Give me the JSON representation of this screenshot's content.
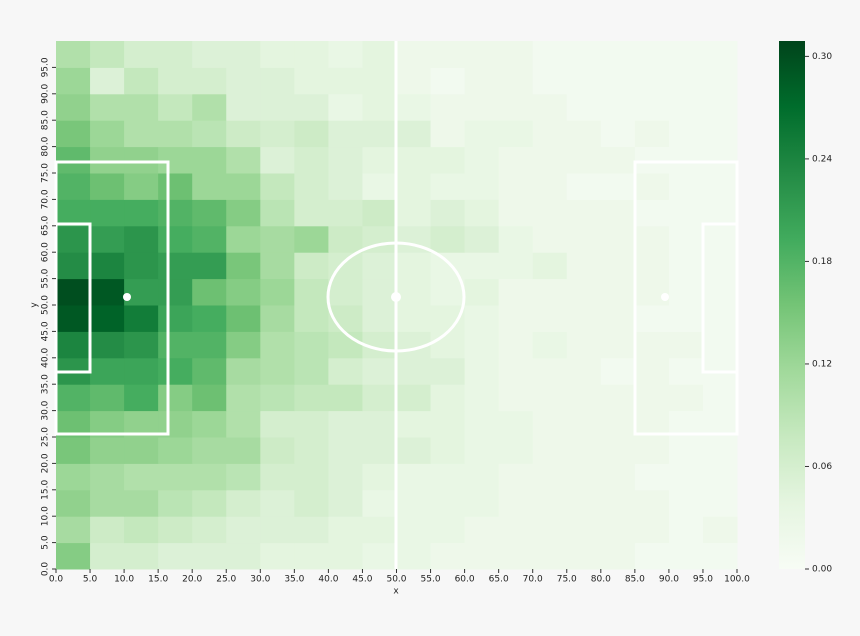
{
  "chart_data": {
    "type": "heatmap",
    "xlabel": "x",
    "ylabel": "y",
    "colormap": "Greens",
    "xlim": [
      0,
      100
    ],
    "ylim": [
      0,
      100
    ],
    "xticks": [
      {
        "value": 0,
        "label": "0.0"
      },
      {
        "value": 5,
        "label": "5.0"
      },
      {
        "value": 10,
        "label": "10.0"
      },
      {
        "value": 15,
        "label": "15.0"
      },
      {
        "value": 20,
        "label": "20.0"
      },
      {
        "value": 25,
        "label": "25.0"
      },
      {
        "value": 30,
        "label": "30.0"
      },
      {
        "value": 35,
        "label": "35.0"
      },
      {
        "value": 40,
        "label": "40.0"
      },
      {
        "value": 45,
        "label": "45.0"
      },
      {
        "value": 50,
        "label": "50.0"
      },
      {
        "value": 55,
        "label": "55.0"
      },
      {
        "value": 60,
        "label": "60.0"
      },
      {
        "value": 65,
        "label": "65.0"
      },
      {
        "value": 70,
        "label": "70.0"
      },
      {
        "value": 75,
        "label": "75.0"
      },
      {
        "value": 80,
        "label": "80.0"
      },
      {
        "value": 85,
        "label": "85.0"
      },
      {
        "value": 90,
        "label": "90.0"
      },
      {
        "value": 95,
        "label": "95.0"
      },
      {
        "value": 100,
        "label": "100.0"
      }
    ],
    "yticks": [
      {
        "value": 0,
        "label": "0.0"
      },
      {
        "value": 5,
        "label": "5.0"
      },
      {
        "value": 10,
        "label": "10.0"
      },
      {
        "value": 15,
        "label": "15.0"
      },
      {
        "value": 20,
        "label": "20.0"
      },
      {
        "value": 25,
        "label": "25.0"
      },
      {
        "value": 30,
        "label": "30.0"
      },
      {
        "value": 35,
        "label": "35.0"
      },
      {
        "value": 40,
        "label": "40.0"
      },
      {
        "value": 45,
        "label": "45.0"
      },
      {
        "value": 50,
        "label": "50.0"
      },
      {
        "value": 55,
        "label": "55.0"
      },
      {
        "value": 60,
        "label": "60.0"
      },
      {
        "value": 65,
        "label": "65.0"
      },
      {
        "value": 70,
        "label": "70.0"
      },
      {
        "value": 75,
        "label": "75.0"
      },
      {
        "value": 80,
        "label": "80.0"
      },
      {
        "value": 85,
        "label": "85.0"
      },
      {
        "value": 90,
        "label": "90.0"
      },
      {
        "value": 95,
        "label": "95.0"
      }
    ],
    "z": [
      [
        0.14,
        0.06,
        0.06,
        0.05,
        0.05,
        0.05,
        0.04,
        0.04,
        0.04,
        0.03,
        0.03,
        0.02,
        0.02,
        0.02,
        0.02,
        0.02,
        0.02,
        0.01,
        0.01,
        0.01
      ],
      [
        0.11,
        0.07,
        0.08,
        0.07,
        0.06,
        0.05,
        0.05,
        0.05,
        0.04,
        0.04,
        0.03,
        0.03,
        0.02,
        0.02,
        0.02,
        0.02,
        0.02,
        0.02,
        0.01,
        0.02
      ],
      [
        0.13,
        0.11,
        0.11,
        0.09,
        0.08,
        0.06,
        0.05,
        0.06,
        0.05,
        0.03,
        0.03,
        0.03,
        0.03,
        0.02,
        0.02,
        0.02,
        0.02,
        0.02,
        0.01,
        0.01
      ],
      [
        0.12,
        0.11,
        0.1,
        0.1,
        0.1,
        0.09,
        0.06,
        0.06,
        0.05,
        0.04,
        0.03,
        0.03,
        0.03,
        0.02,
        0.02,
        0.02,
        0.02,
        0.01,
        0.01,
        0.01
      ],
      [
        0.15,
        0.13,
        0.13,
        0.12,
        0.11,
        0.11,
        0.07,
        0.06,
        0.05,
        0.05,
        0.05,
        0.04,
        0.03,
        0.03,
        0.02,
        0.02,
        0.02,
        0.02,
        0.01,
        0.01
      ],
      [
        0.16,
        0.14,
        0.13,
        0.13,
        0.12,
        0.1,
        0.06,
        0.06,
        0.05,
        0.05,
        0.04,
        0.04,
        0.03,
        0.03,
        0.02,
        0.02,
        0.02,
        0.02,
        0.01,
        0.01
      ],
      [
        0.18,
        0.17,
        0.19,
        0.14,
        0.16,
        0.1,
        0.09,
        0.08,
        0.08,
        0.06,
        0.06,
        0.04,
        0.03,
        0.02,
        0.02,
        0.02,
        0.02,
        0.02,
        0.02,
        0.01
      ],
      [
        0.22,
        0.2,
        0.2,
        0.19,
        0.17,
        0.11,
        0.1,
        0.09,
        0.06,
        0.05,
        0.05,
        0.05,
        0.03,
        0.02,
        0.02,
        0.02,
        0.01,
        0.02,
        0.01,
        0.01
      ],
      [
        0.24,
        0.23,
        0.22,
        0.18,
        0.18,
        0.14,
        0.1,
        0.09,
        0.08,
        0.06,
        0.05,
        0.04,
        0.03,
        0.02,
        0.03,
        0.02,
        0.02,
        0.02,
        0.02,
        0.01
      ],
      [
        0.29,
        0.28,
        0.25,
        0.2,
        0.19,
        0.16,
        0.11,
        0.08,
        0.07,
        0.05,
        0.04,
        0.04,
        0.03,
        0.02,
        0.02,
        0.02,
        0.02,
        0.01,
        0.01,
        0.01
      ],
      [
        0.3,
        0.29,
        0.21,
        0.21,
        0.16,
        0.14,
        0.12,
        0.08,
        0.06,
        0.05,
        0.04,
        0.03,
        0.04,
        0.02,
        0.02,
        0.02,
        0.02,
        0.02,
        0.01,
        0.01
      ],
      [
        0.23,
        0.24,
        0.22,
        0.21,
        0.21,
        0.15,
        0.11,
        0.07,
        0.06,
        0.05,
        0.04,
        0.03,
        0.03,
        0.03,
        0.04,
        0.02,
        0.02,
        0.02,
        0.01,
        0.01
      ],
      [
        0.22,
        0.21,
        0.22,
        0.19,
        0.18,
        0.12,
        0.11,
        0.12,
        0.07,
        0.06,
        0.05,
        0.06,
        0.05,
        0.03,
        0.02,
        0.02,
        0.02,
        0.02,
        0.01,
        0.01
      ],
      [
        0.19,
        0.19,
        0.19,
        0.18,
        0.17,
        0.14,
        0.09,
        0.06,
        0.06,
        0.07,
        0.04,
        0.05,
        0.04,
        0.02,
        0.02,
        0.02,
        0.02,
        0.01,
        0.01,
        0.01
      ],
      [
        0.18,
        0.16,
        0.14,
        0.16,
        0.12,
        0.12,
        0.08,
        0.06,
        0.05,
        0.03,
        0.04,
        0.03,
        0.03,
        0.02,
        0.02,
        0.01,
        0.01,
        0.02,
        0.01,
        0.01
      ],
      [
        0.17,
        0.13,
        0.13,
        0.12,
        0.12,
        0.1,
        0.05,
        0.06,
        0.05,
        0.04,
        0.04,
        0.04,
        0.03,
        0.02,
        0.02,
        0.02,
        0.02,
        0.01,
        0.01,
        0.01
      ],
      [
        0.15,
        0.12,
        0.1,
        0.1,
        0.09,
        0.07,
        0.06,
        0.07,
        0.05,
        0.05,
        0.05,
        0.02,
        0.03,
        0.03,
        0.02,
        0.02,
        0.01,
        0.02,
        0.01,
        0.01
      ],
      [
        0.13,
        0.1,
        0.1,
        0.08,
        0.1,
        0.05,
        0.05,
        0.05,
        0.03,
        0.04,
        0.03,
        0.02,
        0.02,
        0.02,
        0.02,
        0.01,
        0.01,
        0.01,
        0.01,
        0.01
      ],
      [
        0.12,
        0.05,
        0.08,
        0.06,
        0.06,
        0.05,
        0.05,
        0.04,
        0.04,
        0.04,
        0.02,
        0.01,
        0.02,
        0.02,
        0.01,
        0.01,
        0.01,
        0.01,
        0.01,
        0.01
      ],
      [
        0.1,
        0.08,
        0.06,
        0.06,
        0.05,
        0.05,
        0.04,
        0.04,
        0.03,
        0.04,
        0.02,
        0.02,
        0.02,
        0.02,
        0.01,
        0.01,
        0.01,
        0.01,
        0.01,
        0.01
      ]
    ],
    "colorbar": {
      "lim": [
        0,
        0.309
      ],
      "ticks": [
        {
          "value": 0,
          "label": "0.00"
        },
        {
          "value": 0.06,
          "label": "0.06"
        },
        {
          "value": 0.12,
          "label": "0.12"
        },
        {
          "value": 0.18,
          "label": "0.18"
        },
        {
          "value": 0.24,
          "label": "0.24"
        },
        {
          "value": 0.3,
          "label": "0.30"
        }
      ]
    }
  }
}
